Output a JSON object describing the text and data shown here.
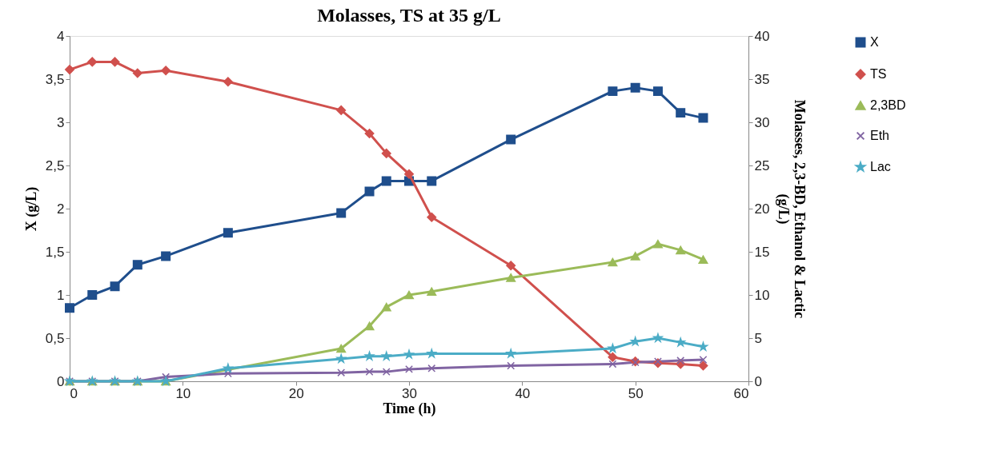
{
  "chart_data": {
    "type": "line",
    "title": "Molasses, TS at 35 g/L",
    "xlabel": "Time (h)",
    "ylabel": "X (g/L)",
    "y2label": "Molasses, 2,3-BD, Ethanol & Lactic (g/L)",
    "x": [
      0,
      2,
      4,
      6,
      8.5,
      14,
      24,
      26.5,
      28,
      30,
      32,
      39,
      48,
      50,
      52,
      54,
      56
    ],
    "series": [
      {
        "name": "X",
        "color": "#1f4e8c",
        "marker": "square",
        "axis": "y",
        "values": [
          0.85,
          1.0,
          1.1,
          1.35,
          1.45,
          1.72,
          1.95,
          2.2,
          2.32,
          2.32,
          2.32,
          2.8,
          3.36,
          3.4,
          3.36,
          3.11,
          3.05
        ]
      },
      {
        "name": "TS",
        "color": "#d0504d",
        "marker": "diamond",
        "axis": "y2",
        "values": [
          36.1,
          37,
          37,
          35.7,
          36,
          34.7,
          31.4,
          28.7,
          26.4,
          24,
          19,
          13.4,
          2.8,
          2.3,
          2.1,
          2.0,
          1.8
        ]
      },
      {
        "name": "2,3BD",
        "color": "#9bbb59",
        "marker": "triangle",
        "axis": "y2",
        "x": [
          0,
          2,
          4,
          6,
          8.5,
          24,
          26.5,
          28,
          30,
          32,
          39,
          48,
          50,
          52,
          54,
          56
        ],
        "values": [
          0,
          0,
          0,
          0,
          0,
          3.8,
          6.4,
          8.6,
          10,
          10.4,
          12,
          13.8,
          14.5,
          15.9,
          15.2,
          14.1
        ]
      },
      {
        "name": "Eth",
        "color": "#8064a2",
        "marker": "cross",
        "axis": "y2",
        "values": [
          0,
          0,
          0,
          0,
          0.5,
          0.9,
          1.0,
          1.1,
          1.1,
          1.4,
          1.5,
          1.8,
          2.0,
          2.2,
          2.3,
          2.4,
          2.5
        ]
      },
      {
        "name": "Lac",
        "color": "#4bacc6",
        "marker": "star",
        "axis": "y2",
        "values": [
          0,
          0,
          0,
          0,
          0,
          1.5,
          2.6,
          2.9,
          2.9,
          3.1,
          3.2,
          3.2,
          3.8,
          4.6,
          5.0,
          4.5,
          4.0
        ]
      }
    ],
    "xlim": [
      0,
      60
    ],
    "xticks": [
      0,
      10,
      20,
      30,
      40,
      50,
      60
    ],
    "ylim": [
      0,
      4
    ],
    "yticks": [
      0,
      {
        "value": 0.5,
        "label": "0,5"
      },
      1,
      {
        "value": 1.5,
        "label": "1,5"
      },
      2,
      {
        "value": 2.5,
        "label": "2,5"
      },
      3,
      {
        "value": 3.5,
        "label": "3,5"
      },
      4
    ],
    "y2lim": [
      0,
      40
    ],
    "y2ticks": [
      0,
      5,
      10,
      15,
      20,
      25,
      30,
      35,
      40
    ],
    "grid": false,
    "legend": "right",
    "line_style": "solid"
  }
}
